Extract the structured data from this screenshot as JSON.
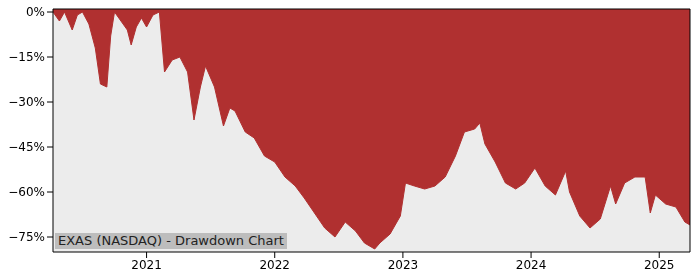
{
  "chart_data": {
    "type": "area",
    "title": "EXAS (NASDAQ) - Drawdown Chart",
    "x": [
      2020.27,
      2020.32,
      2020.36,
      2020.42,
      2020.46,
      2020.5,
      2020.55,
      2020.6,
      2020.64,
      2020.69,
      2020.72,
      2020.75,
      2020.8,
      2020.85,
      2020.88,
      2020.92,
      2020.96,
      2021.0,
      2021.05,
      2021.1,
      2021.14,
      2021.2,
      2021.26,
      2021.32,
      2021.37,
      2021.42,
      2021.46,
      2021.53,
      2021.6,
      2021.65,
      2021.69,
      2021.77,
      2021.84,
      2021.92,
      2022.0,
      2022.08,
      2022.16,
      2022.23,
      2022.31,
      2022.39,
      2022.47,
      2022.55,
      2022.63,
      2022.7,
      2022.78,
      2022.82,
      2022.9,
      2022.98,
      2023.02,
      2023.09,
      2023.17,
      2023.25,
      2023.33,
      2023.41,
      2023.48,
      2023.56,
      2023.6,
      2023.64,
      2023.72,
      2023.8,
      2023.88,
      2023.95,
      2024.03,
      2024.11,
      2024.19,
      2024.27,
      2024.3,
      2024.38,
      2024.46,
      2024.54,
      2024.62,
      2024.66,
      2024.73,
      2024.81,
      2024.89,
      2024.93,
      2024.97,
      2025.05,
      2025.13,
      2025.2,
      2025.24
    ],
    "values": [
      0,
      -3,
      0,
      -6,
      -1,
      0,
      -4,
      -12,
      -24,
      -25,
      -8,
      0,
      -3,
      -6,
      -11,
      -5,
      -2,
      -5,
      -1,
      0,
      -20,
      -16,
      -15,
      -20,
      -36,
      -25,
      -18,
      -25,
      -38,
      -32,
      -33,
      -40,
      -42,
      -48,
      -50,
      -55,
      -58,
      -62,
      -67,
      -72,
      -75,
      -70,
      -73,
      -77,
      -79,
      -77,
      -74,
      -68,
      -57,
      -58,
      -59,
      -58,
      -55,
      -48,
      -40,
      -39,
      -37,
      -44,
      -50,
      -57,
      -59,
      -57,
      -52,
      -58,
      -61,
      -53,
      -60,
      -68,
      -72,
      -69,
      -58,
      -64,
      -57,
      -55,
      -55,
      -67,
      -61,
      -64,
      -65,
      -70,
      -71
    ],
    "color": "#b03030",
    "xlim": [
      2020.27,
      2025.24
    ],
    "xticks": [
      2021,
      2022,
      2023,
      2024,
      2025
    ],
    "ylim": [
      -80,
      1
    ],
    "yticks": [
      {
        "value": 0,
        "label": "0%"
      },
      {
        "value": -15,
        "label": "−15%"
      },
      {
        "value": -30,
        "label": "−30%"
      },
      {
        "value": -45,
        "label": "−45%"
      },
      {
        "value": -60,
        "label": "−60%"
      },
      {
        "value": -75,
        "label": "−75%"
      }
    ],
    "grid": false
  }
}
